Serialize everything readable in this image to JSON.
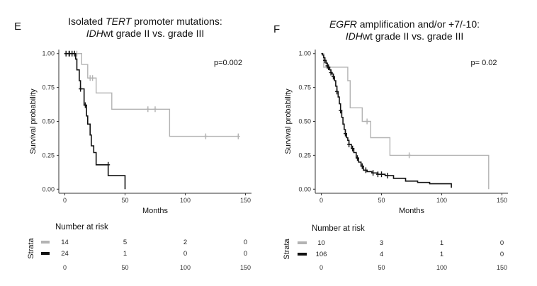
{
  "chart_data": [
    {
      "type": "line",
      "panel_label": "E",
      "title": [
        [
          {
            "text": "Isolated "
          },
          {
            "text": "TERT",
            "italic": true
          },
          {
            "text": " promoter mutations:"
          }
        ],
        [
          {
            "text": "IDH",
            "italic": true
          },
          {
            "text": "wt grade II vs. grade III"
          }
        ]
      ],
      "xlabel": "Months",
      "ylabel": "Survival probability",
      "xlim": [
        -5,
        155
      ],
      "ylim": [
        -0.03,
        1.03
      ],
      "x_ticks": [
        0,
        50,
        100,
        150
      ],
      "y_ticks": [
        "0.00",
        "0.25",
        "0.50",
        "0.75",
        "1.00"
      ],
      "grid": false,
      "annotation": "p=0.002",
      "series": [
        {
          "color": "#b3b3b3",
          "steps": [
            [
              0,
              1.0
            ],
            [
              14,
              1.0
            ],
            [
              14,
              0.92
            ],
            [
              19,
              0.92
            ],
            [
              19,
              0.82
            ],
            [
              26,
              0.82
            ],
            [
              26,
              0.71
            ],
            [
              39,
              0.71
            ],
            [
              39,
              0.59
            ],
            [
              87,
              0.59
            ],
            [
              87,
              0.39
            ],
            [
              144,
              0.39
            ]
          ],
          "censor": [
            [
              3,
              1.0
            ],
            [
              8,
              1.0
            ],
            [
              10,
              1.0
            ],
            [
              21,
              0.82
            ],
            [
              23,
              0.82
            ],
            [
              69,
              0.59
            ],
            [
              75,
              0.59
            ],
            [
              117,
              0.39
            ],
            [
              144,
              0.39
            ]
          ]
        },
        {
          "color": "#111111",
          "steps": [
            [
              0,
              1.0
            ],
            [
              9,
              1.0
            ],
            [
              9,
              0.96
            ],
            [
              10,
              0.96
            ],
            [
              10,
              0.88
            ],
            [
              12,
              0.88
            ],
            [
              12,
              0.8
            ],
            [
              13,
              0.8
            ],
            [
              13,
              0.74
            ],
            [
              16,
              0.74
            ],
            [
              16,
              0.62
            ],
            [
              18,
              0.62
            ],
            [
              18,
              0.54
            ],
            [
              19,
              0.54
            ],
            [
              19,
              0.48
            ],
            [
              21,
              0.48
            ],
            [
              21,
              0.4
            ],
            [
              22,
              0.4
            ],
            [
              22,
              0.32
            ],
            [
              24,
              0.32
            ],
            [
              24,
              0.27
            ],
            [
              26,
              0.27
            ],
            [
              26,
              0.18
            ],
            [
              36,
              0.18
            ],
            [
              36,
              0.1
            ],
            [
              50,
              0.1
            ],
            [
              50,
              0.0
            ]
          ],
          "censor": [
            [
              1,
              1.0
            ],
            [
              4,
              1.0
            ],
            [
              6,
              1.0
            ],
            [
              8,
              1.0
            ],
            [
              13,
              0.74
            ],
            [
              17,
              0.62
            ],
            [
              36,
              0.18
            ]
          ]
        }
      ],
      "risk_table": {
        "title": "Number at risk",
        "strata_label": "Strata",
        "x_ticks": [
          0,
          50,
          100,
          150
        ],
        "rows": [
          {
            "color": "#b3b3b3",
            "values": [
              "14",
              "5",
              "2",
              "0"
            ]
          },
          {
            "color": "#111111",
            "values": [
              "24",
              "1",
              "0",
              "0"
            ]
          }
        ]
      }
    },
    {
      "type": "line",
      "panel_label": "F",
      "title": [
        [
          {
            "text": "EGFR",
            "italic": true
          },
          {
            "text": " amplification and/or +7/-10:"
          }
        ],
        [
          {
            "text": "IDH",
            "italic": true
          },
          {
            "text": "wt grade II vs. grade III"
          }
        ]
      ],
      "xlabel": "Months",
      "ylabel": "Survival probability",
      "xlim": [
        -5,
        155
      ],
      "ylim": [
        -0.03,
        1.03
      ],
      "x_ticks": [
        0,
        50,
        100,
        150
      ],
      "y_ticks": [
        "0.00",
        "0.25",
        "0.50",
        "0.75",
        "1.00"
      ],
      "grid": false,
      "annotation": "p= 0.02",
      "series": [
        {
          "color": "#b3b3b3",
          "steps": [
            [
              0,
              1.0
            ],
            [
              2,
              1.0
            ],
            [
              2,
              0.9
            ],
            [
              22,
              0.9
            ],
            [
              22,
              0.8
            ],
            [
              24,
              0.8
            ],
            [
              24,
              0.6
            ],
            [
              34,
              0.6
            ],
            [
              34,
              0.5
            ],
            [
              41,
              0.5
            ],
            [
              41,
              0.38
            ],
            [
              57,
              0.38
            ],
            [
              57,
              0.25
            ],
            [
              139,
              0.25
            ],
            [
              139,
              0.0
            ]
          ],
          "censor": [
            [
              38,
              0.5
            ],
            [
              73,
              0.25
            ]
          ]
        },
        {
          "color": "#111111",
          "steps": [
            [
              0,
              1.0
            ],
            [
              1,
              0.99
            ],
            [
              2,
              0.97
            ],
            [
              3,
              0.95
            ],
            [
              4,
              0.93
            ],
            [
              5,
              0.91
            ],
            [
              6,
              0.9
            ],
            [
              7,
              0.88
            ],
            [
              8,
              0.86
            ],
            [
              9,
              0.85
            ],
            [
              10,
              0.83
            ],
            [
              11,
              0.8
            ],
            [
              12,
              0.76
            ],
            [
              13,
              0.72
            ],
            [
              14,
              0.68
            ],
            [
              15,
              0.63
            ],
            [
              16,
              0.58
            ],
            [
              17,
              0.53
            ],
            [
              18,
              0.48
            ],
            [
              19,
              0.44
            ],
            [
              20,
              0.41
            ],
            [
              21,
              0.38
            ],
            [
              22,
              0.36
            ],
            [
              23,
              0.33
            ],
            [
              25,
              0.3
            ],
            [
              27,
              0.27
            ],
            [
              29,
              0.23
            ],
            [
              31,
              0.2
            ],
            [
              33,
              0.17
            ],
            [
              35,
              0.14
            ],
            [
              38,
              0.13
            ],
            [
              42,
              0.12
            ],
            [
              47,
              0.11
            ],
            [
              53,
              0.1
            ],
            [
              60,
              0.08
            ],
            [
              70,
              0.06
            ],
            [
              80,
              0.05
            ],
            [
              90,
              0.04
            ],
            [
              108,
              0.04
            ],
            [
              108,
              0.01
            ]
          ],
          "censor": [
            [
              3,
              0.95
            ],
            [
              5,
              0.91
            ],
            [
              6,
              0.9
            ],
            [
              8,
              0.86
            ],
            [
              10,
              0.83
            ],
            [
              13,
              0.72
            ],
            [
              16,
              0.58
            ],
            [
              20,
              0.41
            ],
            [
              23,
              0.33
            ],
            [
              26,
              0.3
            ],
            [
              30,
              0.23
            ],
            [
              34,
              0.17
            ],
            [
              37,
              0.14
            ],
            [
              43,
              0.12
            ],
            [
              47,
              0.11
            ],
            [
              50,
              0.11
            ],
            [
              55,
              0.1
            ]
          ]
        }
      ],
      "risk_table": {
        "title": "Number at risk",
        "strata_label": "Strata",
        "x_ticks": [
          0,
          50,
          100,
          150
        ],
        "rows": [
          {
            "color": "#b3b3b3",
            "values": [
              "10",
              "3",
              "1",
              "0"
            ]
          },
          {
            "color": "#111111",
            "values": [
              "106",
              "4",
              "1",
              "0"
            ]
          }
        ]
      }
    }
  ]
}
